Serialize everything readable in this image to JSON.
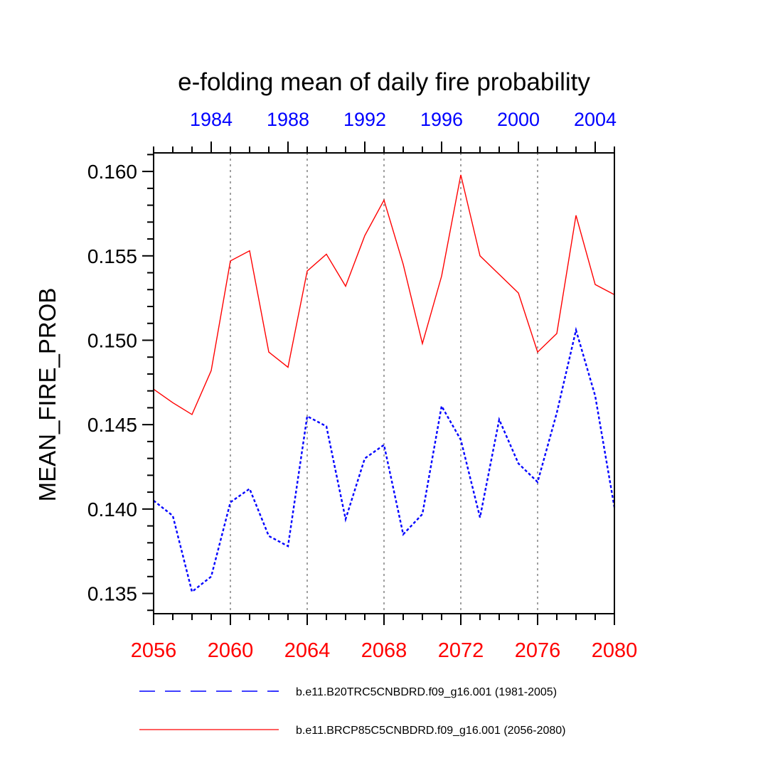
{
  "chart_data": {
    "type": "line",
    "title": "e-folding mean of daily fire probability",
    "ylabel": "MEAN_FIRE_PROB",
    "ylim": [
      0.1338,
      0.1611
    ],
    "y_ticks": [
      0.135,
      0.14,
      0.145,
      0.15,
      0.155,
      0.16
    ],
    "y_tick_labels": [
      "0.135",
      "0.140",
      "0.145",
      "0.150",
      "0.155",
      "0.160"
    ],
    "y_minor_step": 0.001,
    "bottom_axis": {
      "color": "#ff0000",
      "range": [
        2056,
        2080
      ],
      "ticks": [
        2056,
        2060,
        2064,
        2068,
        2072,
        2076,
        2080
      ],
      "tick_labels": [
        "2056",
        "2060",
        "2064",
        "2068",
        "2072",
        "2076",
        "2080"
      ]
    },
    "top_axis": {
      "color": "#0000ff",
      "range": [
        1981,
        2005
      ],
      "ticks": [
        1984,
        1988,
        1992,
        1996,
        2000,
        2004
      ],
      "tick_labels": [
        "1984",
        "1988",
        "1992",
        "1996",
        "2000",
        "2004"
      ]
    },
    "grid_x": [
      2060,
      2064,
      2068,
      2072,
      2076
    ],
    "series": [
      {
        "name": "b.e11.B20TRC5CNBDRD.f09_g16.001 (1981-2005)",
        "color": "#0000ff",
        "style": "dashed",
        "x": [
          2056,
          2057,
          2058,
          2059,
          2060,
          2061,
          2062,
          2063,
          2064,
          2065,
          2066,
          2067,
          2068,
          2069,
          2070,
          2071,
          2072,
          2073,
          2074,
          2075,
          2076,
          2077,
          2078,
          2079,
          2080
        ],
        "values": [
          0.1405,
          0.1396,
          0.1351,
          0.136,
          0.1404,
          0.1412,
          0.1384,
          0.1378,
          0.1455,
          0.1449,
          0.1394,
          0.143,
          0.1438,
          0.1385,
          0.1397,
          0.1461,
          0.1441,
          0.1395,
          0.1453,
          0.1427,
          0.1416,
          0.1457,
          0.1506,
          0.1467,
          0.1401
        ]
      },
      {
        "name": "b.e11.BRCP85C5CNBDRD.f09_g16.001 (2056-2080)",
        "color": "#ff0000",
        "style": "solid",
        "x": [
          2056,
          2057,
          2058,
          2059,
          2060,
          2061,
          2062,
          2063,
          2064,
          2065,
          2066,
          2067,
          2068,
          2069,
          2070,
          2071,
          2072,
          2073,
          2074,
          2075,
          2076,
          2077,
          2078,
          2079,
          2080
        ],
        "values": [
          0.1471,
          0.1463,
          0.1456,
          0.1482,
          0.1547,
          0.1553,
          0.1493,
          0.1484,
          0.1541,
          0.1551,
          0.1532,
          0.1562,
          0.1583,
          0.1545,
          0.1498,
          0.1538,
          0.1598,
          0.155,
          0.1539,
          0.1528,
          0.1493,
          0.1504,
          0.1574,
          0.1533,
          0.1527
        ]
      }
    ],
    "legend_position": "bottom"
  }
}
